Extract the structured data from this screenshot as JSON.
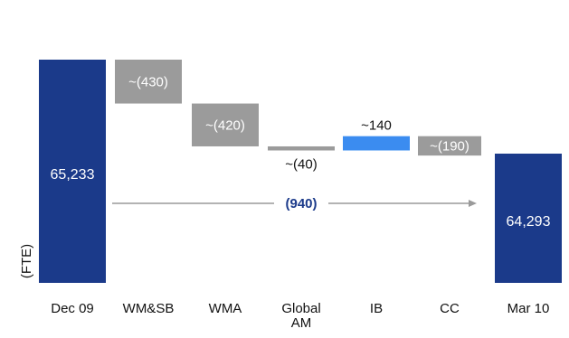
{
  "chart_data": {
    "type": "bar",
    "subtype": "waterfall",
    "categories": [
      "Dec 09",
      "WM&SB",
      "WMA",
      "Global AM",
      "IB",
      "CC",
      "Mar 10"
    ],
    "category_label_lines": [
      [
        "Dec 09"
      ],
      [
        "WM&SB"
      ],
      [
        "WMA"
      ],
      [
        "Global",
        "AM"
      ],
      [
        "IB"
      ],
      [
        "CC"
      ],
      [
        "Mar 10"
      ]
    ],
    "values": [
      65233,
      -430,
      -420,
      -40,
      140,
      -190,
      64293
    ],
    "value_labels": [
      "65,233",
      "~(430)",
      "~(420)",
      "~(40)",
      "~140",
      "~(190)",
      "64,293"
    ],
    "bar_kinds": [
      "total",
      "decrease",
      "decrease",
      "decrease",
      "increase",
      "decrease",
      "total"
    ],
    "total_change": {
      "label": "(940)",
      "value": -940
    },
    "ylabel": "(FTE)",
    "title": "",
    "xlabel": "",
    "colors": {
      "total": "#1b3a8a",
      "decrease": "#9b9b9b",
      "increase": "#3b8cf0",
      "arrow": "#9a9a9a",
      "delta_text": "#1b3a8a"
    }
  }
}
